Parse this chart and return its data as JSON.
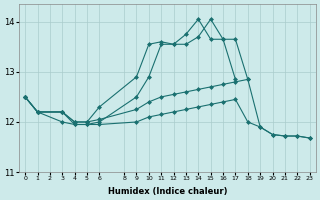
{
  "xlabel": "Humidex (Indice chaleur)",
  "background_color": "#cdeaea",
  "grid_color": "#aacccc",
  "line_color": "#1a7070",
  "ylim": [
    11.0,
    14.35
  ],
  "yticks": [
    11,
    12,
    13,
    14
  ],
  "xticks": [
    0,
    1,
    2,
    3,
    4,
    5,
    6,
    8,
    9,
    10,
    11,
    12,
    13,
    14,
    15,
    16,
    17,
    18,
    19,
    20,
    21,
    22,
    23
  ],
  "curves": [
    {
      "x": [
        0,
        1,
        3,
        4,
        5,
        6,
        9,
        10,
        11,
        12,
        13,
        14,
        15,
        16,
        17
      ],
      "y": [
        12.5,
        12.2,
        12.2,
        12.0,
        12.0,
        12.3,
        12.9,
        13.55,
        13.6,
        13.55,
        13.75,
        14.05,
        13.65,
        13.65,
        12.85
      ]
    },
    {
      "x": [
        0,
        1,
        3,
        4,
        5,
        6,
        9,
        10,
        11,
        12,
        13,
        14,
        15,
        16,
        17,
        18
      ],
      "y": [
        12.5,
        12.2,
        12.2,
        11.95,
        11.95,
        12.0,
        12.5,
        12.9,
        13.55,
        13.55,
        13.55,
        13.7,
        14.05,
        13.65,
        13.65,
        12.85
      ]
    },
    {
      "x": [
        0,
        1,
        3,
        4,
        5,
        6,
        9,
        10,
        11,
        12,
        13,
        14,
        15,
        16,
        17,
        18,
        19,
        20,
        21,
        22,
        23
      ],
      "y": [
        12.5,
        12.2,
        12.2,
        12.0,
        12.0,
        12.05,
        12.25,
        12.4,
        12.5,
        12.55,
        12.6,
        12.65,
        12.7,
        12.75,
        12.8,
        12.85,
        11.9,
        11.75,
        11.72,
        11.72,
        11.68
      ]
    },
    {
      "x": [
        0,
        1,
        3,
        4,
        5,
        6,
        9,
        10,
        11,
        12,
        13,
        14,
        15,
        16,
        17,
        18,
        19,
        20,
        21,
        22,
        23
      ],
      "y": [
        12.5,
        12.2,
        12.0,
        11.95,
        11.95,
        11.95,
        12.0,
        12.1,
        12.15,
        12.2,
        12.25,
        12.3,
        12.35,
        12.4,
        12.45,
        12.0,
        11.9,
        11.75,
        11.72,
        11.72,
        11.68
      ]
    }
  ]
}
